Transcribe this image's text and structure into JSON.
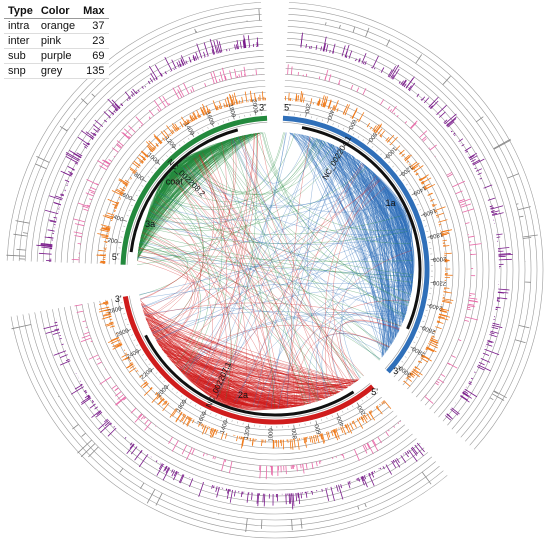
{
  "legend": {
    "headers": [
      "Type",
      "Color",
      "Max"
    ],
    "rows": [
      {
        "type": "intra",
        "color": "orange",
        "max": "37"
      },
      {
        "type": "inter",
        "color": "pink",
        "max": "23"
      },
      {
        "type": "sub",
        "color": "purple",
        "max": "69"
      },
      {
        "type": "snp",
        "color": "grey",
        "max": "135"
      }
    ]
  },
  "colors": {
    "seg1": "#2f6fb9",
    "seg2": "#d01c1c",
    "seg3": "#23893d",
    "intra": "#f07a1a",
    "inter": "#e86aa8",
    "sub": "#7b1c8c",
    "snp": "#888888",
    "ring": "#9a9a9a"
  },
  "segments": [
    {
      "id": "seg1",
      "name": "NC_002204.1",
      "gene": "1a",
      "length": 3100,
      "ticks": [
        200,
        400,
        600,
        800,
        1000,
        1200,
        1400,
        1600,
        1800,
        2000,
        2200,
        2400,
        2600,
        2800,
        3000
      ],
      "ends": [
        "5'",
        "3'"
      ]
    },
    {
      "id": "seg2",
      "name": "NC_002207.1",
      "gene": "2a",
      "length": 2900,
      "ticks": [
        200,
        400,
        600,
        800,
        1000,
        1200,
        1400,
        1600,
        1800,
        2000,
        2200,
        2400,
        2600,
        2800
      ],
      "ends": [
        "5'",
        "3'"
      ]
    },
    {
      "id": "seg3",
      "name": "NC_002208.2",
      "gene": "coat",
      "gene2": "3a",
      "length": 2100,
      "ticks": [
        200,
        400,
        600,
        800,
        1000,
        1200,
        1400,
        1600,
        1800,
        2000
      ],
      "ends": [
        "5'",
        "3'"
      ]
    }
  ]
}
